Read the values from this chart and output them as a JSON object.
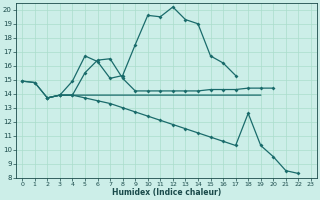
{
  "xlabel": "Humidex (Indice chaleur)",
  "background_color": "#cceee8",
  "grid_color": "#aaddcc",
  "line_color": "#1a6b6b",
  "xlim": [
    -0.5,
    23.5
  ],
  "ylim": [
    8,
    20.5
  ],
  "xticks": [
    0,
    1,
    2,
    3,
    4,
    5,
    6,
    7,
    8,
    9,
    10,
    11,
    12,
    13,
    14,
    15,
    16,
    17,
    18,
    19,
    20,
    21,
    22,
    23
  ],
  "yticks": [
    8,
    9,
    10,
    11,
    12,
    13,
    14,
    15,
    16,
    17,
    18,
    19,
    20
  ],
  "line1_x": [
    0,
    1,
    2,
    3,
    4,
    5,
    6,
    7,
    8,
    9,
    10,
    11,
    12,
    13,
    14,
    15,
    16,
    17
  ],
  "line1_y": [
    14.9,
    14.8,
    13.7,
    13.9,
    14.9,
    16.7,
    16.3,
    15.1,
    15.3,
    17.5,
    19.6,
    19.5,
    20.2,
    19.3,
    19.0,
    16.7,
    16.2,
    15.3
  ],
  "line2_x": [
    0,
    1,
    2,
    3,
    4,
    5,
    6,
    7,
    8,
    9,
    10,
    11,
    12,
    13,
    14,
    15,
    16,
    17,
    18,
    19,
    20
  ],
  "line2_y": [
    14.9,
    14.8,
    13.7,
    13.9,
    13.9,
    15.5,
    16.4,
    16.5,
    15.1,
    14.2,
    14.2,
    14.2,
    14.2,
    14.2,
    14.2,
    14.3,
    14.3,
    14.3,
    14.4,
    14.4,
    14.4
  ],
  "line3_x": [
    2,
    3,
    4,
    5,
    6,
    7,
    8,
    9,
    10,
    11,
    12,
    13,
    14,
    15,
    16,
    17,
    18,
    19,
    20,
    21,
    22
  ],
  "line3_y": [
    13.7,
    13.9,
    13.9,
    13.7,
    13.5,
    13.3,
    13.0,
    12.7,
    12.4,
    12.1,
    11.8,
    11.5,
    11.2,
    10.9,
    10.6,
    10.3,
    12.6,
    10.3,
    9.5,
    8.5,
    8.3
  ],
  "line4_x": [
    2,
    3,
    4,
    5,
    6,
    7,
    8,
    9,
    10,
    11,
    12,
    13,
    14,
    15,
    16,
    17,
    18,
    19
  ],
  "line4_y": [
    13.7,
    13.9,
    13.9,
    13.9,
    13.9,
    13.9,
    13.9,
    13.9,
    13.9,
    13.9,
    13.9,
    13.9,
    13.9,
    13.9,
    13.9,
    13.9,
    13.9,
    13.9
  ]
}
